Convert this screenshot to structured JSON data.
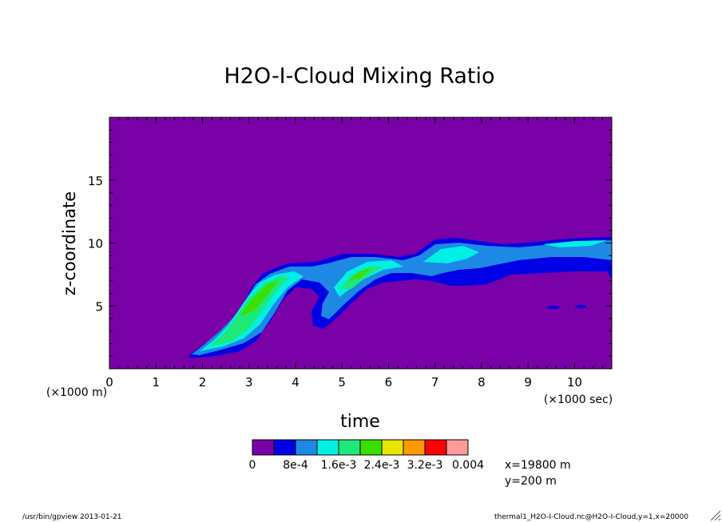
{
  "chart_data": {
    "type": "contour",
    "title": "H2O-I-Cloud Mixing Ratio",
    "xlabel": "time",
    "ylabel": "z-coordinate",
    "x_unit": "(×1000 sec)",
    "y_unit": "(×1000 m)",
    "xlim": [
      0,
      10.8
    ],
    "ylim": [
      0,
      20
    ],
    "xticks": [
      "0",
      "1",
      "2",
      "3",
      "4",
      "5",
      "6",
      "7",
      "8",
      "9",
      "10"
    ],
    "yticks": [
      "5",
      "10",
      "15"
    ],
    "colorbar": {
      "colors": [
        "#7a00a8",
        "#0000e6",
        "#1e88e5",
        "#00f0e6",
        "#1de87a",
        "#3be000",
        "#e6e600",
        "#ff9900",
        "#ff0000",
        "#ff9a9a"
      ],
      "labels": [
        "0",
        "8e-4",
        "1.6e-3",
        "2.4e-3",
        "3.2e-3",
        "0.004"
      ]
    },
    "background_color": "#7a00a8",
    "annotations": [
      "x=19800 m",
      "y=200 m"
    ]
  },
  "footer": {
    "left": "/usr/bin/gpview  2013-01-21",
    "right": "thermal1_H2O-I-Cloud.nc@H2O-I-Cloud,y=1,x=20000"
  }
}
